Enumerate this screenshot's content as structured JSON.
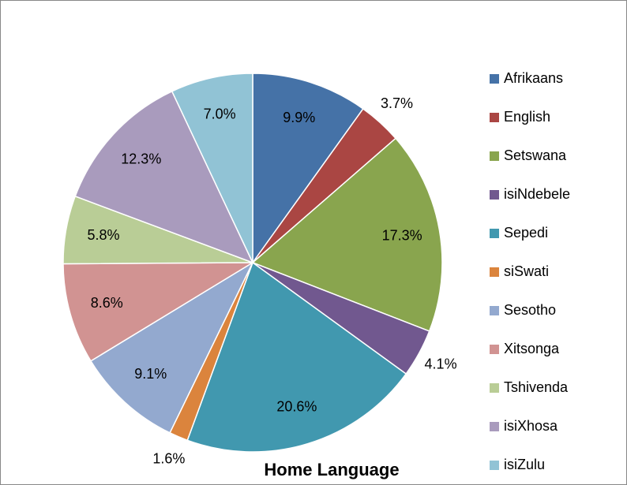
{
  "chart_data": {
    "type": "pie",
    "title": "Home Language",
    "categories": [
      "Afrikaans",
      "English",
      "Setswana",
      "isiNdebele",
      "Sepedi",
      "siSwati",
      "Sesotho",
      "Xitsonga",
      "Tshivenda",
      "isiXhosa",
      "isiZulu"
    ],
    "values": [
      9.9,
      3.7,
      17.3,
      4.1,
      20.6,
      1.6,
      9.1,
      8.6,
      5.8,
      12.3,
      7.0
    ],
    "value_labels": [
      "9.9%",
      "3.7%",
      "17.3%",
      "4.1%",
      "20.6%",
      "1.6%",
      "9.1%",
      "8.6%",
      "5.8%",
      "12.3%",
      "7.0%"
    ],
    "colors": [
      "#4572a7",
      "#aa4643",
      "#89a54e",
      "#71588f",
      "#4198af",
      "#db843d",
      "#93a9cf",
      "#d19392",
      "#b9cd96",
      "#a99bbd",
      "#91c3d5"
    ],
    "legend": "right"
  }
}
